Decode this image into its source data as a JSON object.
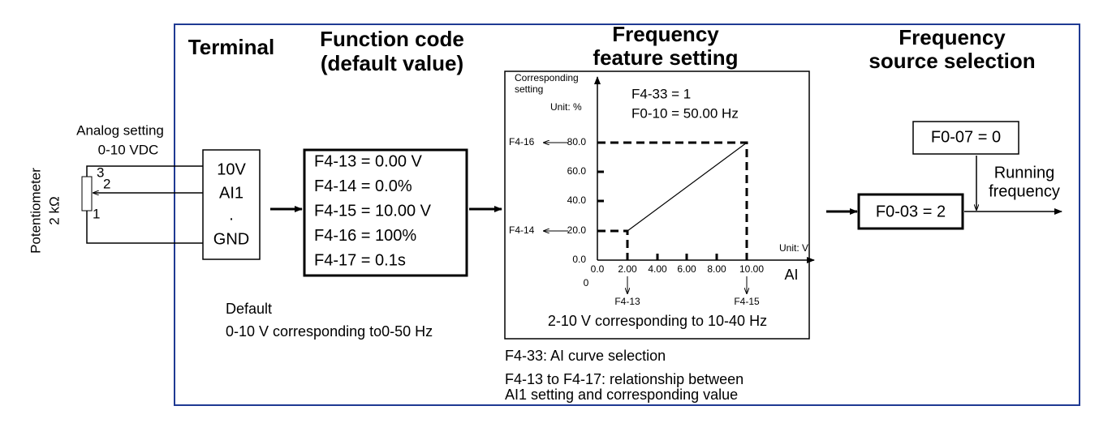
{
  "columns": [
    {
      "title": [
        "Terminal"
      ]
    },
    {
      "title": [
        "Function code",
        "(default value)"
      ]
    },
    {
      "title": [
        "Frequency",
        "feature setting"
      ]
    },
    {
      "title": [
        "Frequency",
        "source selection"
      ]
    }
  ],
  "potentiometer": {
    "label": [
      "Potentiometer",
      "2 kΩ"
    ],
    "analog": [
      "Analog setting",
      "0-10 VDC"
    ],
    "pins": [
      "3",
      "2",
      "1"
    ]
  },
  "terminal_block": [
    "10V",
    "AI1",
    ".",
    "GND"
  ],
  "function_codes": [
    "F4-13 = 0.00 V",
    "F4-14 = 0.0%",
    "F4-15 = 10.00 V",
    "F4-16 = 100%",
    "F4-17 = 0.1s"
  ],
  "default_note": [
    "Default",
    "0-10 V corresponding to0-50 Hz"
  ],
  "graph": {
    "ylabel": [
      "Corresponding",
      "setting"
    ],
    "unit_y": "Unit: %",
    "params": [
      "F4-33 = 1",
      "F0-10 = 50.00 Hz"
    ],
    "yticks": [
      "0.0",
      "20.0",
      "40.0",
      "60.0",
      "80.0"
    ],
    "y_refs": [
      "F4-14",
      "F4-16"
    ],
    "xticks": [
      "0.0",
      "2.00",
      "4.00",
      "6.00",
      "8.00",
      "10.00"
    ],
    "x_zero": "0",
    "unit_x": "Unit: V",
    "xlabel": "AI",
    "x_refs": [
      "F4-13",
      "F4-15"
    ],
    "caption": "2-10 V corresponding to 10-40 Hz"
  },
  "notes": [
    "F4-33: AI curve selection",
    "F4-13 to F4-17: relationship between",
    "AI1 setting and corresponding value"
  ],
  "source": {
    "selector": "F0-07 = 0",
    "setting": "F0-03 = 2",
    "output": [
      "Running",
      "frequency"
    ]
  }
}
